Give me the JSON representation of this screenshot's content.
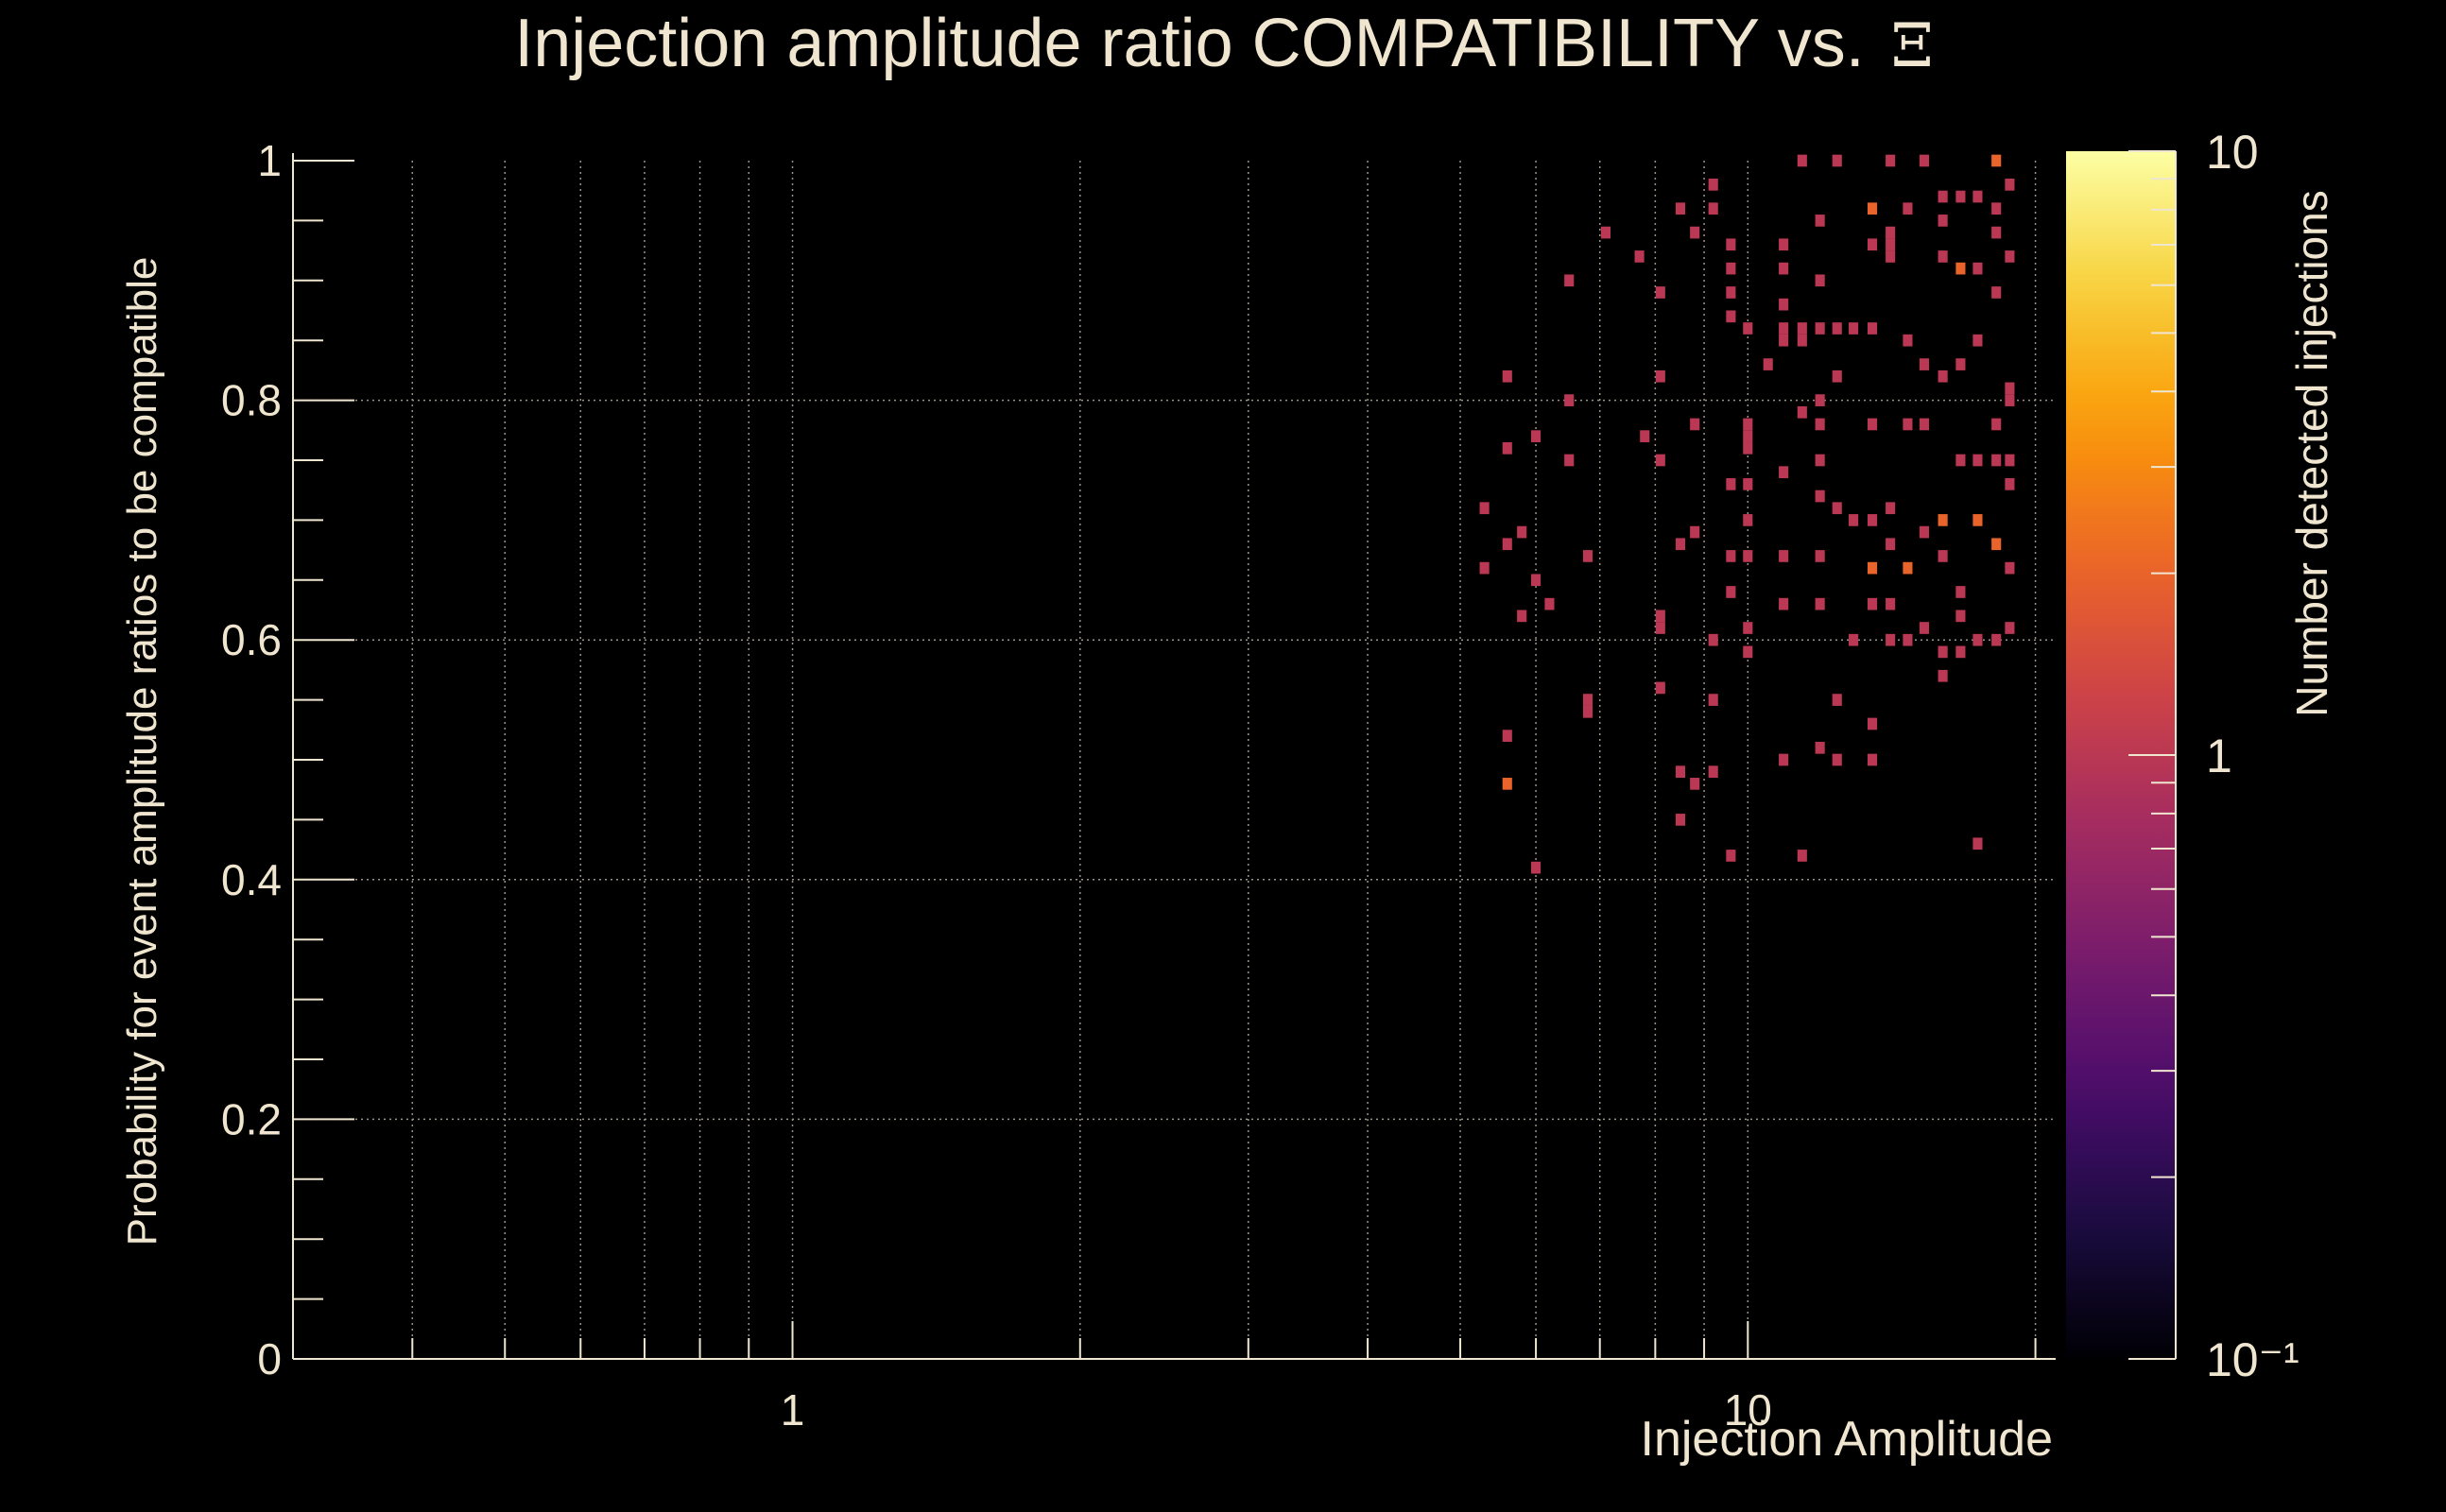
{
  "chart_data": {
    "type": "heatmap",
    "title": "Injection amplitude ratio COMPATIBILITY vs.",
    "title_symbol": "Ξ",
    "xlabel": "Injection Amplitude",
    "ylabel": "Probability for event amplitude ratios to be compatible",
    "zlabel": "Number detected injections",
    "x_scale": "log",
    "x_range": [
      0.3,
      21
    ],
    "x_ticks": [
      {
        "value": 1,
        "label": "1"
      },
      {
        "value": 10,
        "label": "10"
      }
    ],
    "y_range": [
      0,
      1
    ],
    "y_ticks": [
      {
        "value": 0,
        "label": "0"
      },
      {
        "value": 0.2,
        "label": "0.2"
      },
      {
        "value": 0.4,
        "label": "0.4"
      },
      {
        "value": 0.6,
        "label": "0.6"
      },
      {
        "value": 0.8,
        "label": "0.8"
      },
      {
        "value": 1,
        "label": "1"
      }
    ],
    "z_scale": "log",
    "z_range": [
      0.1,
      10
    ],
    "z_ticks": [
      {
        "value": 10,
        "label": "10"
      },
      {
        "value": 1,
        "label": "1"
      },
      {
        "value": 0.1,
        "label": "10⁻¹"
      }
    ],
    "grid": true,
    "colormap": [
      "#000004",
      "#1b0c41",
      "#4a0c6b",
      "#781c6d",
      "#a52c60",
      "#cf4446",
      "#ed6925",
      "#fb9b06",
      "#f7d13d",
      "#fcffa4"
    ],
    "plot_background": "#000000",
    "text_color": "#f0e6d0",
    "x_bin_width_decades": 0.01,
    "y_bin_width": 0.01,
    "cells": [
      [
        5.3,
        0.71,
        1
      ],
      [
        5.3,
        0.66,
        1
      ],
      [
        5.6,
        0.82,
        1
      ],
      [
        5.6,
        0.76,
        1
      ],
      [
        5.6,
        0.68,
        1
      ],
      [
        5.6,
        0.52,
        1
      ],
      [
        5.6,
        0.48,
        2
      ],
      [
        5.8,
        0.69,
        1
      ],
      [
        5.8,
        0.62,
        1
      ],
      [
        6.0,
        0.77,
        1
      ],
      [
        6.0,
        0.65,
        1
      ],
      [
        6.0,
        0.41,
        1
      ],
      [
        6.2,
        0.63,
        1
      ],
      [
        6.5,
        0.9,
        1
      ],
      [
        6.5,
        0.8,
        1
      ],
      [
        6.5,
        0.75,
        1
      ],
      [
        6.8,
        0.67,
        1
      ],
      [
        6.8,
        0.55,
        1
      ],
      [
        6.8,
        0.54,
        1
      ],
      [
        7.1,
        0.94,
        1
      ],
      [
        7.7,
        0.92,
        1
      ],
      [
        7.8,
        0.77,
        1
      ],
      [
        8.1,
        0.89,
        1
      ],
      [
        8.1,
        0.82,
        1
      ],
      [
        8.1,
        0.75,
        1
      ],
      [
        8.1,
        0.62,
        1
      ],
      [
        8.1,
        0.61,
        1
      ],
      [
        8.1,
        0.56,
        1
      ],
      [
        8.5,
        0.96,
        1
      ],
      [
        8.5,
        0.68,
        1
      ],
      [
        8.5,
        0.49,
        1
      ],
      [
        8.5,
        0.45,
        1
      ],
      [
        8.8,
        0.94,
        1
      ],
      [
        8.8,
        0.78,
        1
      ],
      [
        8.8,
        0.48,
        1
      ],
      [
        8.8,
        0.69,
        1
      ],
      [
        9.2,
        0.98,
        1
      ],
      [
        9.2,
        0.96,
        1
      ],
      [
        9.2,
        0.6,
        1
      ],
      [
        9.2,
        0.55,
        1
      ],
      [
        9.2,
        0.49,
        1
      ],
      [
        9.6,
        0.93,
        1
      ],
      [
        9.6,
        0.91,
        1
      ],
      [
        9.6,
        0.89,
        1
      ],
      [
        9.6,
        0.87,
        1
      ],
      [
        9.6,
        0.73,
        1
      ],
      [
        9.6,
        0.67,
        1
      ],
      [
        9.6,
        0.64,
        1
      ],
      [
        9.6,
        0.42,
        1
      ],
      [
        10.0,
        0.86,
        1
      ],
      [
        10.0,
        0.78,
        1
      ],
      [
        10.0,
        0.77,
        1
      ],
      [
        10.0,
        0.76,
        1
      ],
      [
        10.0,
        0.73,
        1
      ],
      [
        10.0,
        0.7,
        1
      ],
      [
        10.0,
        0.67,
        1
      ],
      [
        10.0,
        0.61,
        1
      ],
      [
        10.0,
        0.59,
        1
      ],
      [
        10.5,
        0.83,
        1
      ],
      [
        10.9,
        0.93,
        1
      ],
      [
        10.9,
        0.91,
        1
      ],
      [
        10.9,
        0.88,
        1
      ],
      [
        10.9,
        0.86,
        1
      ],
      [
        10.9,
        0.85,
        1
      ],
      [
        10.9,
        0.74,
        1
      ],
      [
        10.9,
        0.67,
        1
      ],
      [
        10.9,
        0.63,
        1
      ],
      [
        10.9,
        0.5,
        1
      ],
      [
        11.4,
        0.86,
        1
      ],
      [
        11.4,
        0.85,
        1
      ],
      [
        11.4,
        0.79,
        1
      ],
      [
        11.4,
        0.42,
        1
      ],
      [
        11.4,
        1.0,
        1
      ],
      [
        11.9,
        0.95,
        1
      ],
      [
        11.9,
        0.9,
        1
      ],
      [
        11.9,
        0.86,
        1
      ],
      [
        11.9,
        0.8,
        1
      ],
      [
        11.9,
        0.78,
        1
      ],
      [
        11.9,
        0.75,
        1
      ],
      [
        11.9,
        0.72,
        1
      ],
      [
        11.9,
        0.67,
        1
      ],
      [
        11.9,
        0.63,
        1
      ],
      [
        11.9,
        0.51,
        1
      ],
      [
        12.4,
        1.0,
        1
      ],
      [
        12.4,
        0.86,
        1
      ],
      [
        12.4,
        0.82,
        1
      ],
      [
        12.4,
        0.71,
        1
      ],
      [
        12.4,
        0.55,
        1
      ],
      [
        12.4,
        0.5,
        1
      ],
      [
        12.9,
        0.86,
        1
      ],
      [
        12.9,
        0.7,
        1
      ],
      [
        12.9,
        0.6,
        1
      ],
      [
        13.5,
        0.96,
        2
      ],
      [
        13.5,
        0.93,
        1
      ],
      [
        13.5,
        0.86,
        1
      ],
      [
        13.5,
        0.78,
        1
      ],
      [
        13.5,
        0.7,
        1
      ],
      [
        13.5,
        0.66,
        2
      ],
      [
        13.5,
        0.63,
        1
      ],
      [
        13.5,
        0.53,
        1
      ],
      [
        13.5,
        0.5,
        1
      ],
      [
        14.1,
        1.0,
        1
      ],
      [
        14.1,
        0.94,
        1
      ],
      [
        14.1,
        0.93,
        1
      ],
      [
        14.1,
        0.92,
        1
      ],
      [
        14.1,
        0.71,
        1
      ],
      [
        14.1,
        0.68,
        1
      ],
      [
        14.1,
        0.63,
        1
      ],
      [
        14.1,
        0.6,
        1
      ],
      [
        14.7,
        0.96,
        1
      ],
      [
        14.7,
        0.85,
        1
      ],
      [
        14.7,
        0.78,
        1
      ],
      [
        14.7,
        0.66,
        2
      ],
      [
        14.7,
        0.6,
        1
      ],
      [
        15.3,
        1.0,
        1
      ],
      [
        15.3,
        0.83,
        1
      ],
      [
        15.3,
        0.78,
        1
      ],
      [
        15.3,
        0.69,
        1
      ],
      [
        15.3,
        0.61,
        1
      ],
      [
        16.0,
        0.97,
        1
      ],
      [
        16.0,
        0.95,
        1
      ],
      [
        16.0,
        0.92,
        1
      ],
      [
        16.0,
        0.82,
        1
      ],
      [
        16.0,
        0.7,
        2
      ],
      [
        16.0,
        0.67,
        1
      ],
      [
        16.0,
        0.59,
        1
      ],
      [
        16.0,
        0.57,
        1
      ],
      [
        16.7,
        0.97,
        1
      ],
      [
        16.7,
        0.91,
        2
      ],
      [
        16.7,
        0.83,
        1
      ],
      [
        16.7,
        0.75,
        1
      ],
      [
        16.7,
        0.64,
        1
      ],
      [
        16.7,
        0.62,
        1
      ],
      [
        16.7,
        0.59,
        1
      ],
      [
        17.4,
        0.97,
        1
      ],
      [
        17.4,
        0.91,
        1
      ],
      [
        17.4,
        0.85,
        1
      ],
      [
        17.4,
        0.75,
        1
      ],
      [
        17.4,
        0.7,
        2
      ],
      [
        17.4,
        0.6,
        1
      ],
      [
        17.4,
        0.43,
        1
      ],
      [
        18.2,
        1.0,
        2
      ],
      [
        18.2,
        0.96,
        1
      ],
      [
        18.2,
        0.94,
        1
      ],
      [
        18.2,
        0.89,
        1
      ],
      [
        18.2,
        0.78,
        1
      ],
      [
        18.2,
        0.75,
        1
      ],
      [
        18.2,
        0.68,
        2
      ],
      [
        18.2,
        0.6,
        1
      ],
      [
        18.8,
        0.98,
        1
      ],
      [
        18.8,
        0.92,
        1
      ],
      [
        18.8,
        0.8,
        1
      ],
      [
        18.8,
        0.75,
        1
      ],
      [
        18.8,
        0.73,
        1
      ],
      [
        18.8,
        0.66,
        1
      ],
      [
        18.8,
        0.61,
        1
      ],
      [
        18.8,
        0.81,
        1
      ]
    ]
  }
}
